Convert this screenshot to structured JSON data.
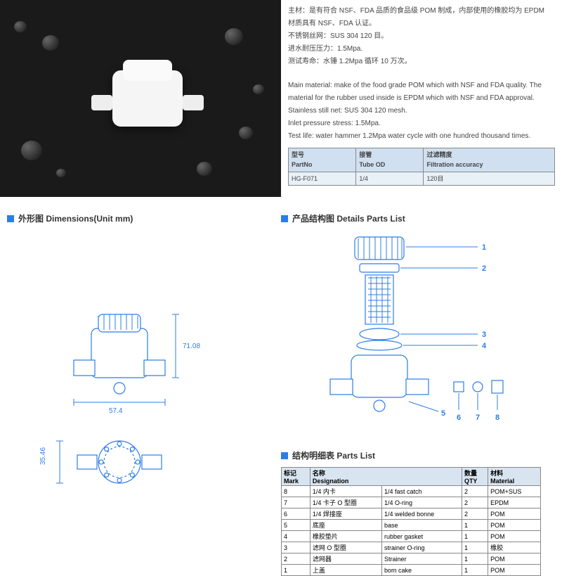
{
  "desc": {
    "zh1": "主材：是有符合 NSF、FDA 品质的食品级 POM 制成，内部使用的橡胶均为 EPDM",
    "zh2": "材质具有 NSF、FDA 认证。",
    "zh3": "不锈钢丝网：SUS 304 120 目。",
    "zh4": "进水耐压压力：1.5Mpa.",
    "zh5": "测试寿命：水锤 1.2Mpa 循环 10 万次。",
    "en1": "Main material: make of the food grade POM which with NSF and FDA quality. The",
    "en2": "material for the rubber used inside is EPDM which with NSF and FDA approval.",
    "en3": "Stainless still net: SUS 304 120 mesh.",
    "en4": "Inlet pressure stress: 1.5Mpa.",
    "en5": "Test life: water hammer 1.2Mpa water cycle with one hundred thousand times."
  },
  "spec": {
    "h1zh": "型号",
    "h1en": "PartNo",
    "h2zh": "接管",
    "h2en": "Tube OD",
    "h3zh": "过滤精度",
    "h3en": "Filtration accuracy",
    "r1c1": "HG-F071",
    "r1c2": "1/4",
    "r1c3": "120目"
  },
  "hdr": {
    "dims_zh": "外形图",
    "dims_en": "Dimensions(Unit mm)",
    "parts_zh": "产品结构图",
    "parts_en": "Details Parts List",
    "plist_zh": "结构明细表",
    "plist_en": "Parts List"
  },
  "dims": {
    "h": "71.08",
    "w": "57.4",
    "d": "35.46"
  },
  "callouts": [
    "1",
    "2",
    "3",
    "4",
    "5",
    "6",
    "7",
    "8"
  ],
  "plist": {
    "h1zh": "标记",
    "h1en": "Mark",
    "h2zh": "名称",
    "h2en": "Designation",
    "h3zh": "数量",
    "h3en": "QTY",
    "h4zh": "材料",
    "h4en": "Material",
    "rows": [
      {
        "m": "8",
        "zh": "1/4 内卡",
        "en": "1/4 fast catch",
        "q": "2",
        "mat": "POM+SUS"
      },
      {
        "m": "7",
        "zh": "1/4 卡子 O 型圈",
        "en": "1/4 O-ring",
        "q": "2",
        "mat": "EPDM"
      },
      {
        "m": "6",
        "zh": "1/4 焊接座",
        "en": "1/4 welded bonne",
        "q": "2",
        "mat": "POM"
      },
      {
        "m": "5",
        "zh": "底座",
        "en": "base",
        "q": "1",
        "mat": "POM"
      },
      {
        "m": "4",
        "zh": "橡胶垫片",
        "en": "rubber gasket",
        "q": "1",
        "mat": "POM"
      },
      {
        "m": "3",
        "zh": "滤网 O 型圈",
        "en": "strainer O-ring",
        "q": "1",
        "mat": "橡胶"
      },
      {
        "m": "2",
        "zh": "滤网器",
        "en": "Strainer",
        "q": "1",
        "mat": "POM"
      },
      {
        "m": "1",
        "zh": "上盖",
        "en": "bom cake",
        "q": "1",
        "mat": "POM"
      }
    ]
  }
}
